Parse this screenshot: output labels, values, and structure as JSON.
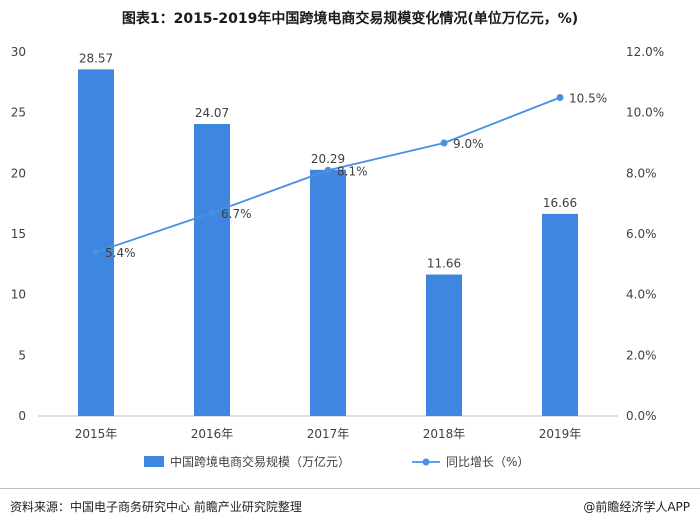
{
  "title": "图表1：2015-2019年中国跨境电商交易规模变化情况(单位万亿元，%)",
  "footer": {
    "source": "资料来源：中国电子商务研究中心 前瞻产业研究院整理",
    "brand": "@前瞻经济学人APP"
  },
  "colors": {
    "bar": "#3f86e0",
    "line": "#4a90e2",
    "axis": "#bfbfbf",
    "grid": "#d9d9d9"
  },
  "chart_data": {
    "type": "bar",
    "categories": [
      "2015年",
      "2016年",
      "2017年",
      "2018年",
      "2019年"
    ],
    "series": [
      {
        "name": "中国跨境电商交易规模（万亿元）",
        "type": "bar",
        "axis": "left",
        "values": [
          28.57,
          24.07,
          20.29,
          11.66,
          16.66
        ],
        "labels": [
          "28.57",
          "24.07",
          "20.29",
          "11.66",
          "16.66"
        ]
      },
      {
        "name": "同比增长（%）",
        "type": "line",
        "axis": "right",
        "values": [
          5.4,
          6.7,
          8.1,
          9.0,
          10.5
        ],
        "labels": [
          "5.4%",
          "6.7%",
          "8.1%",
          "9.0%",
          "10.5%"
        ]
      }
    ],
    "y_left": {
      "min": 0,
      "max": 30,
      "ticks": [
        "0",
        "5",
        "10",
        "15",
        "20",
        "25",
        "30"
      ]
    },
    "y_right": {
      "min": 0,
      "max": 12,
      "ticks": [
        "0.0%",
        "2.0%",
        "4.0%",
        "6.0%",
        "8.0%",
        "10.0%",
        "12.0%"
      ]
    },
    "legend_position": "bottom",
    "grid": false
  }
}
